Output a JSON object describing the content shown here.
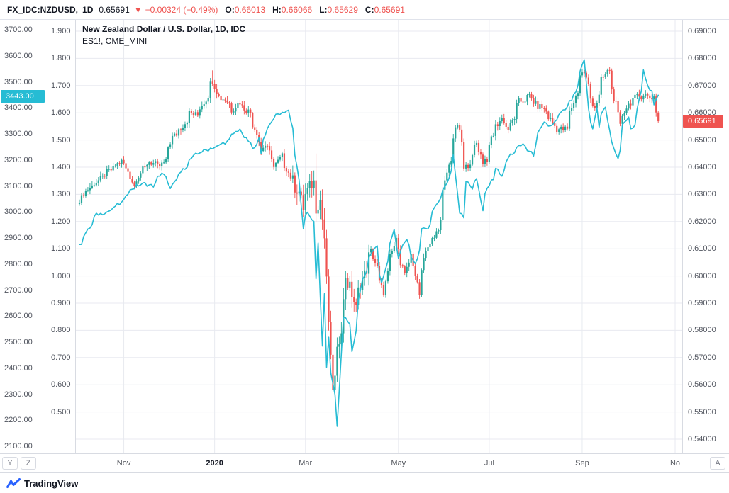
{
  "header": {
    "symbol": "FX_IDC:NZDUSD,",
    "interval": "1D",
    "last_price": "0.65691",
    "direction_icon": "▼",
    "change": "−0.00324 (−0.49%)",
    "ohlc": [
      {
        "label": "O:",
        "value": "0.66013"
      },
      {
        "label": "H:",
        "value": "0.66066"
      },
      {
        "label": "L:",
        "value": "0.65629"
      },
      {
        "label": "C:",
        "value": "0.65691"
      }
    ]
  },
  "legend": {
    "line1": "New Zealand Dollar / U.S. Dollar, 1D, IDC",
    "line2": "ES1!, CME_MINI"
  },
  "axes": {
    "left_es_ticks": [
      "3700.00",
      "3600.00",
      "3500.00",
      "3400.00",
      "3300.00",
      "3200.00",
      "3100.00",
      "3000.00",
      "2900.00",
      "2800.00",
      "2700.00",
      "2600.00",
      "2500.00",
      "2400.00",
      "2300.00",
      "2200.00",
      "2100.00"
    ],
    "left_mid_ticks": [
      "1.900",
      "1.800",
      "1.700",
      "1.600",
      "1.500",
      "1.400",
      "1.300",
      "1.200",
      "1.100",
      "1.000",
      "0.900",
      "0.800",
      "0.700",
      "0.600",
      "0.500"
    ],
    "right_ticks": [
      "0.69000",
      "0.68000",
      "0.67000",
      "0.66000",
      "0.65000",
      "0.64000",
      "0.63000",
      "0.62000",
      "0.61000",
      "0.60000",
      "0.59000",
      "0.58000",
      "0.57000",
      "0.56000",
      "0.55000",
      "0.54000"
    ],
    "left_price_label": "3443.00",
    "right_price_label": "0.65691"
  },
  "buttons": {
    "y": "Y",
    "z": "Z",
    "a": "A"
  },
  "footer": {
    "brand": "TradingView"
  },
  "colors": {
    "up": "#26a69a",
    "down": "#ef5350",
    "grid": "#e8eaf0",
    "left_label_bg": "#26bcd4",
    "right_label_bg": "#ef5350"
  },
  "chart_data": {
    "type": "candlestick",
    "title": "New Zealand Dollar / U.S. Dollar, 1D, IDC with ES1!, CME_MINI overlay",
    "right_axis": {
      "max": 0.69,
      "min": 0.54,
      "step": 0.01
    },
    "left_axis": {
      "max": 3700,
      "min": 2100,
      "step": 100
    },
    "mid_axis": {
      "max": 1.9,
      "min": 0.5,
      "step": 0.1
    },
    "time_axis": {
      "start": "2019-10-03",
      "end": "2020-11-03",
      "ticks": [
        {
          "label": "Nov",
          "date": "2019-11-01"
        },
        {
          "label": "2020",
          "date": "2020-01-01",
          "bold": true
        },
        {
          "label": "Mar",
          "date": "2020-03-01"
        },
        {
          "label": "May",
          "date": "2020-05-01"
        },
        {
          "label": "Jul",
          "date": "2020-07-01"
        },
        {
          "label": "Sep",
          "date": "2020-09-01"
        },
        {
          "label": "No",
          "date": "2020-11-01"
        }
      ]
    },
    "series": [
      {
        "name": "NZDUSD",
        "title": "New Zealand Dollar / U.S. Dollar",
        "type": "candlestick",
        "scale": "right",
        "last_bar": "2020-10-21",
        "last_value": 0.65691,
        "last_ohlc": {
          "o": 0.66013,
          "h": 0.66066,
          "l": 0.65629,
          "c": 0.65691
        },
        "anchors": [
          [
            "2019-10-03",
            0.628
          ],
          [
            "2019-10-10",
            0.6325
          ],
          [
            "2019-10-17",
            0.6355
          ],
          [
            "2019-10-24",
            0.639
          ],
          [
            "2019-10-31",
            0.642
          ],
          [
            "2019-11-05",
            0.6385
          ],
          [
            "2019-11-08",
            0.633
          ],
          [
            "2019-11-14",
            0.639
          ],
          [
            "2019-11-19",
            0.642
          ],
          [
            "2019-11-25",
            0.64
          ],
          [
            "2019-11-29",
            0.642
          ],
          [
            "2019-12-04",
            0.651
          ],
          [
            "2019-12-10",
            0.6545
          ],
          [
            "2019-12-16",
            0.66
          ],
          [
            "2019-12-20",
            0.659
          ],
          [
            "2019-12-26",
            0.665
          ],
          [
            "2019-12-31",
            0.672
          ],
          [
            "2020-01-03",
            0.666
          ],
          [
            "2020-01-08",
            0.665
          ],
          [
            "2020-01-13",
            0.661
          ],
          [
            "2020-01-17",
            0.664
          ],
          [
            "2020-01-24",
            0.66
          ],
          [
            "2020-01-29",
            0.653
          ],
          [
            "2020-01-31",
            0.646
          ],
          [
            "2020-02-04",
            0.648
          ],
          [
            "2020-02-10",
            0.64
          ],
          [
            "2020-02-14",
            0.644
          ],
          [
            "2020-02-18",
            0.6395
          ],
          [
            "2020-02-21",
            0.635
          ],
          [
            "2020-02-26",
            0.631
          ],
          [
            "2020-02-28",
            0.625
          ],
          [
            "2020-03-04",
            0.633
          ],
          [
            "2020-03-06",
            0.6345
          ],
          [
            "2020-03-09",
            0.625
          ],
          [
            "2020-03-11",
            0.628
          ],
          [
            "2020-03-13",
            0.614
          ],
          [
            "2020-03-16",
            0.598
          ],
          [
            "2020-03-18",
            0.569
          ],
          [
            "2020-03-19",
            0.559
          ],
          [
            "2020-03-23",
            0.572
          ],
          [
            "2020-03-25",
            0.581
          ],
          [
            "2020-03-27",
            0.6
          ],
          [
            "2020-03-31",
            0.596
          ],
          [
            "2020-04-03",
            0.588
          ],
          [
            "2020-04-08",
            0.599
          ],
          [
            "2020-04-14",
            0.609
          ],
          [
            "2020-04-17",
            0.603
          ],
          [
            "2020-04-22",
            0.594
          ],
          [
            "2020-04-24",
            0.601
          ],
          [
            "2020-04-30",
            0.613
          ],
          [
            "2020-05-06",
            0.601
          ],
          [
            "2020-05-11",
            0.608
          ],
          [
            "2020-05-15",
            0.593
          ],
          [
            "2020-05-20",
            0.61
          ],
          [
            "2020-05-26",
            0.614
          ],
          [
            "2020-05-29",
            0.62
          ],
          [
            "2020-06-03",
            0.638
          ],
          [
            "2020-06-10",
            0.656
          ],
          [
            "2020-06-15",
            0.639
          ],
          [
            "2020-06-18",
            0.642
          ],
          [
            "2020-06-23",
            0.649
          ],
          [
            "2020-06-26",
            0.642
          ],
          [
            "2020-06-30",
            0.643
          ],
          [
            "2020-07-02",
            0.651
          ],
          [
            "2020-07-09",
            0.658
          ],
          [
            "2020-07-14",
            0.654
          ],
          [
            "2020-07-21",
            0.664
          ],
          [
            "2020-07-28",
            0.666
          ],
          [
            "2020-07-31",
            0.663
          ],
          [
            "2020-08-05",
            0.662
          ],
          [
            "2020-08-11",
            0.6575
          ],
          [
            "2020-08-14",
            0.654
          ],
          [
            "2020-08-21",
            0.654
          ],
          [
            "2020-08-26",
            0.664
          ],
          [
            "2020-08-31",
            0.674
          ],
          [
            "2020-09-02",
            0.675
          ],
          [
            "2020-09-04",
            0.67
          ],
          [
            "2020-09-09",
            0.662
          ],
          [
            "2020-09-14",
            0.672
          ],
          [
            "2020-09-18",
            0.676
          ],
          [
            "2020-09-23",
            0.663
          ],
          [
            "2020-09-25",
            0.655
          ],
          [
            "2020-09-30",
            0.662
          ],
          [
            "2020-10-02",
            0.664
          ],
          [
            "2020-10-08",
            0.666
          ],
          [
            "2020-10-12",
            0.667
          ],
          [
            "2020-10-15",
            0.6655
          ],
          [
            "2020-10-19",
            0.666
          ],
          [
            "2020-10-20",
            0.66013
          ],
          [
            "2020-10-21",
            0.65691
          ]
        ],
        "specials": [
          {
            "date": "2019-12-31",
            "high": 0.6756
          },
          {
            "date": "2020-03-09",
            "high": 0.645
          },
          {
            "date": "2020-03-19",
            "low": 0.547
          },
          {
            "date": "2020-09-18",
            "high": 0.6768
          },
          {
            "date": "2020-10-21",
            "high": 0.66066,
            "low": 0.65629
          }
        ]
      },
      {
        "name": "ES1!",
        "exchange": "CME_MINI",
        "type": "line",
        "scale": "left",
        "color": "#26bcd4",
        "last_point": "2020-10-21",
        "last_value": 3443,
        "anchors": [
          [
            "2019-10-03",
            2870
          ],
          [
            "2019-10-10",
            2940
          ],
          [
            "2019-10-15",
            2990
          ],
          [
            "2019-10-22",
            3000
          ],
          [
            "2019-10-31",
            3035
          ],
          [
            "2019-11-07",
            3090
          ],
          [
            "2019-11-15",
            3110
          ],
          [
            "2019-11-21",
            3100
          ],
          [
            "2019-11-27",
            3150
          ],
          [
            "2019-12-03",
            3095
          ],
          [
            "2019-12-12",
            3170
          ],
          [
            "2019-12-19",
            3220
          ],
          [
            "2019-12-27",
            3240
          ],
          [
            "2020-01-02",
            3250
          ],
          [
            "2020-01-09",
            3270
          ],
          [
            "2020-01-17",
            3320
          ],
          [
            "2020-01-27",
            3240
          ],
          [
            "2020-01-30",
            3280
          ],
          [
            "2020-01-31",
            3220
          ],
          [
            "2020-02-06",
            3340
          ],
          [
            "2020-02-12",
            3375
          ],
          [
            "2020-02-19",
            3390
          ],
          [
            "2020-02-24",
            3220
          ],
          [
            "2020-02-26",
            3120
          ],
          [
            "2020-02-28",
            2930
          ],
          [
            "2020-03-03",
            3000
          ],
          [
            "2020-03-06",
            2960
          ],
          [
            "2020-03-09",
            2740
          ],
          [
            "2020-03-10",
            2880
          ],
          [
            "2020-03-12",
            2480
          ],
          [
            "2020-03-13",
            2690
          ],
          [
            "2020-03-16",
            2400
          ],
          [
            "2020-03-17",
            2520
          ],
          [
            "2020-03-18",
            2380
          ],
          [
            "2020-03-20",
            2300
          ],
          [
            "2020-03-23",
            2174
          ],
          [
            "2020-03-26",
            2600
          ],
          [
            "2020-03-31",
            2570
          ],
          [
            "2020-04-01",
            2460
          ],
          [
            "2020-04-08",
            2740
          ],
          [
            "2020-04-14",
            2840
          ],
          [
            "2020-04-17",
            2870
          ],
          [
            "2020-04-21",
            2730
          ],
          [
            "2020-04-29",
            2930
          ],
          [
            "2020-05-01",
            2820
          ],
          [
            "2020-05-07",
            2890
          ],
          [
            "2020-05-13",
            2800
          ],
          [
            "2020-05-18",
            2930
          ],
          [
            "2020-05-21",
            2940
          ],
          [
            "2020-05-27",
            3030
          ],
          [
            "2020-06-03",
            3110
          ],
          [
            "2020-06-08",
            3220
          ],
          [
            "2020-06-11",
            3000
          ],
          [
            "2020-06-15",
            2980
          ],
          [
            "2020-06-16",
            3120
          ],
          [
            "2020-06-19",
            3090
          ],
          [
            "2020-06-23",
            3130
          ],
          [
            "2020-06-26",
            3000
          ],
          [
            "2020-06-30",
            3090
          ],
          [
            "2020-07-06",
            3170
          ],
          [
            "2020-07-09",
            3140
          ],
          [
            "2020-07-15",
            3220
          ],
          [
            "2020-07-23",
            3260
          ],
          [
            "2020-07-30",
            3220
          ],
          [
            "2020-07-31",
            3260
          ],
          [
            "2020-08-06",
            3340
          ],
          [
            "2020-08-11",
            3330
          ],
          [
            "2020-08-18",
            3380
          ],
          [
            "2020-08-25",
            3430
          ],
          [
            "2020-08-28",
            3480
          ],
          [
            "2020-09-02",
            3580
          ],
          [
            "2020-09-04",
            3400
          ],
          [
            "2020-09-08",
            3320
          ],
          [
            "2020-09-10",
            3400
          ],
          [
            "2020-09-11",
            3330
          ],
          [
            "2020-09-14",
            3380
          ],
          [
            "2020-09-16",
            3400
          ],
          [
            "2020-09-18",
            3310
          ],
          [
            "2020-09-21",
            3270
          ],
          [
            "2020-09-24",
            3200
          ],
          [
            "2020-09-28",
            3340
          ],
          [
            "2020-10-01",
            3360
          ],
          [
            "2020-10-02",
            3320
          ],
          [
            "2020-10-06",
            3330
          ],
          [
            "2020-10-07",
            3400
          ],
          [
            "2020-10-09",
            3470
          ],
          [
            "2020-10-12",
            3540
          ],
          [
            "2020-10-14",
            3480
          ],
          [
            "2020-10-16",
            3460
          ],
          [
            "2020-10-19",
            3410
          ],
          [
            "2020-10-20",
            3435
          ],
          [
            "2020-10-21",
            3443
          ]
        ]
      }
    ]
  }
}
